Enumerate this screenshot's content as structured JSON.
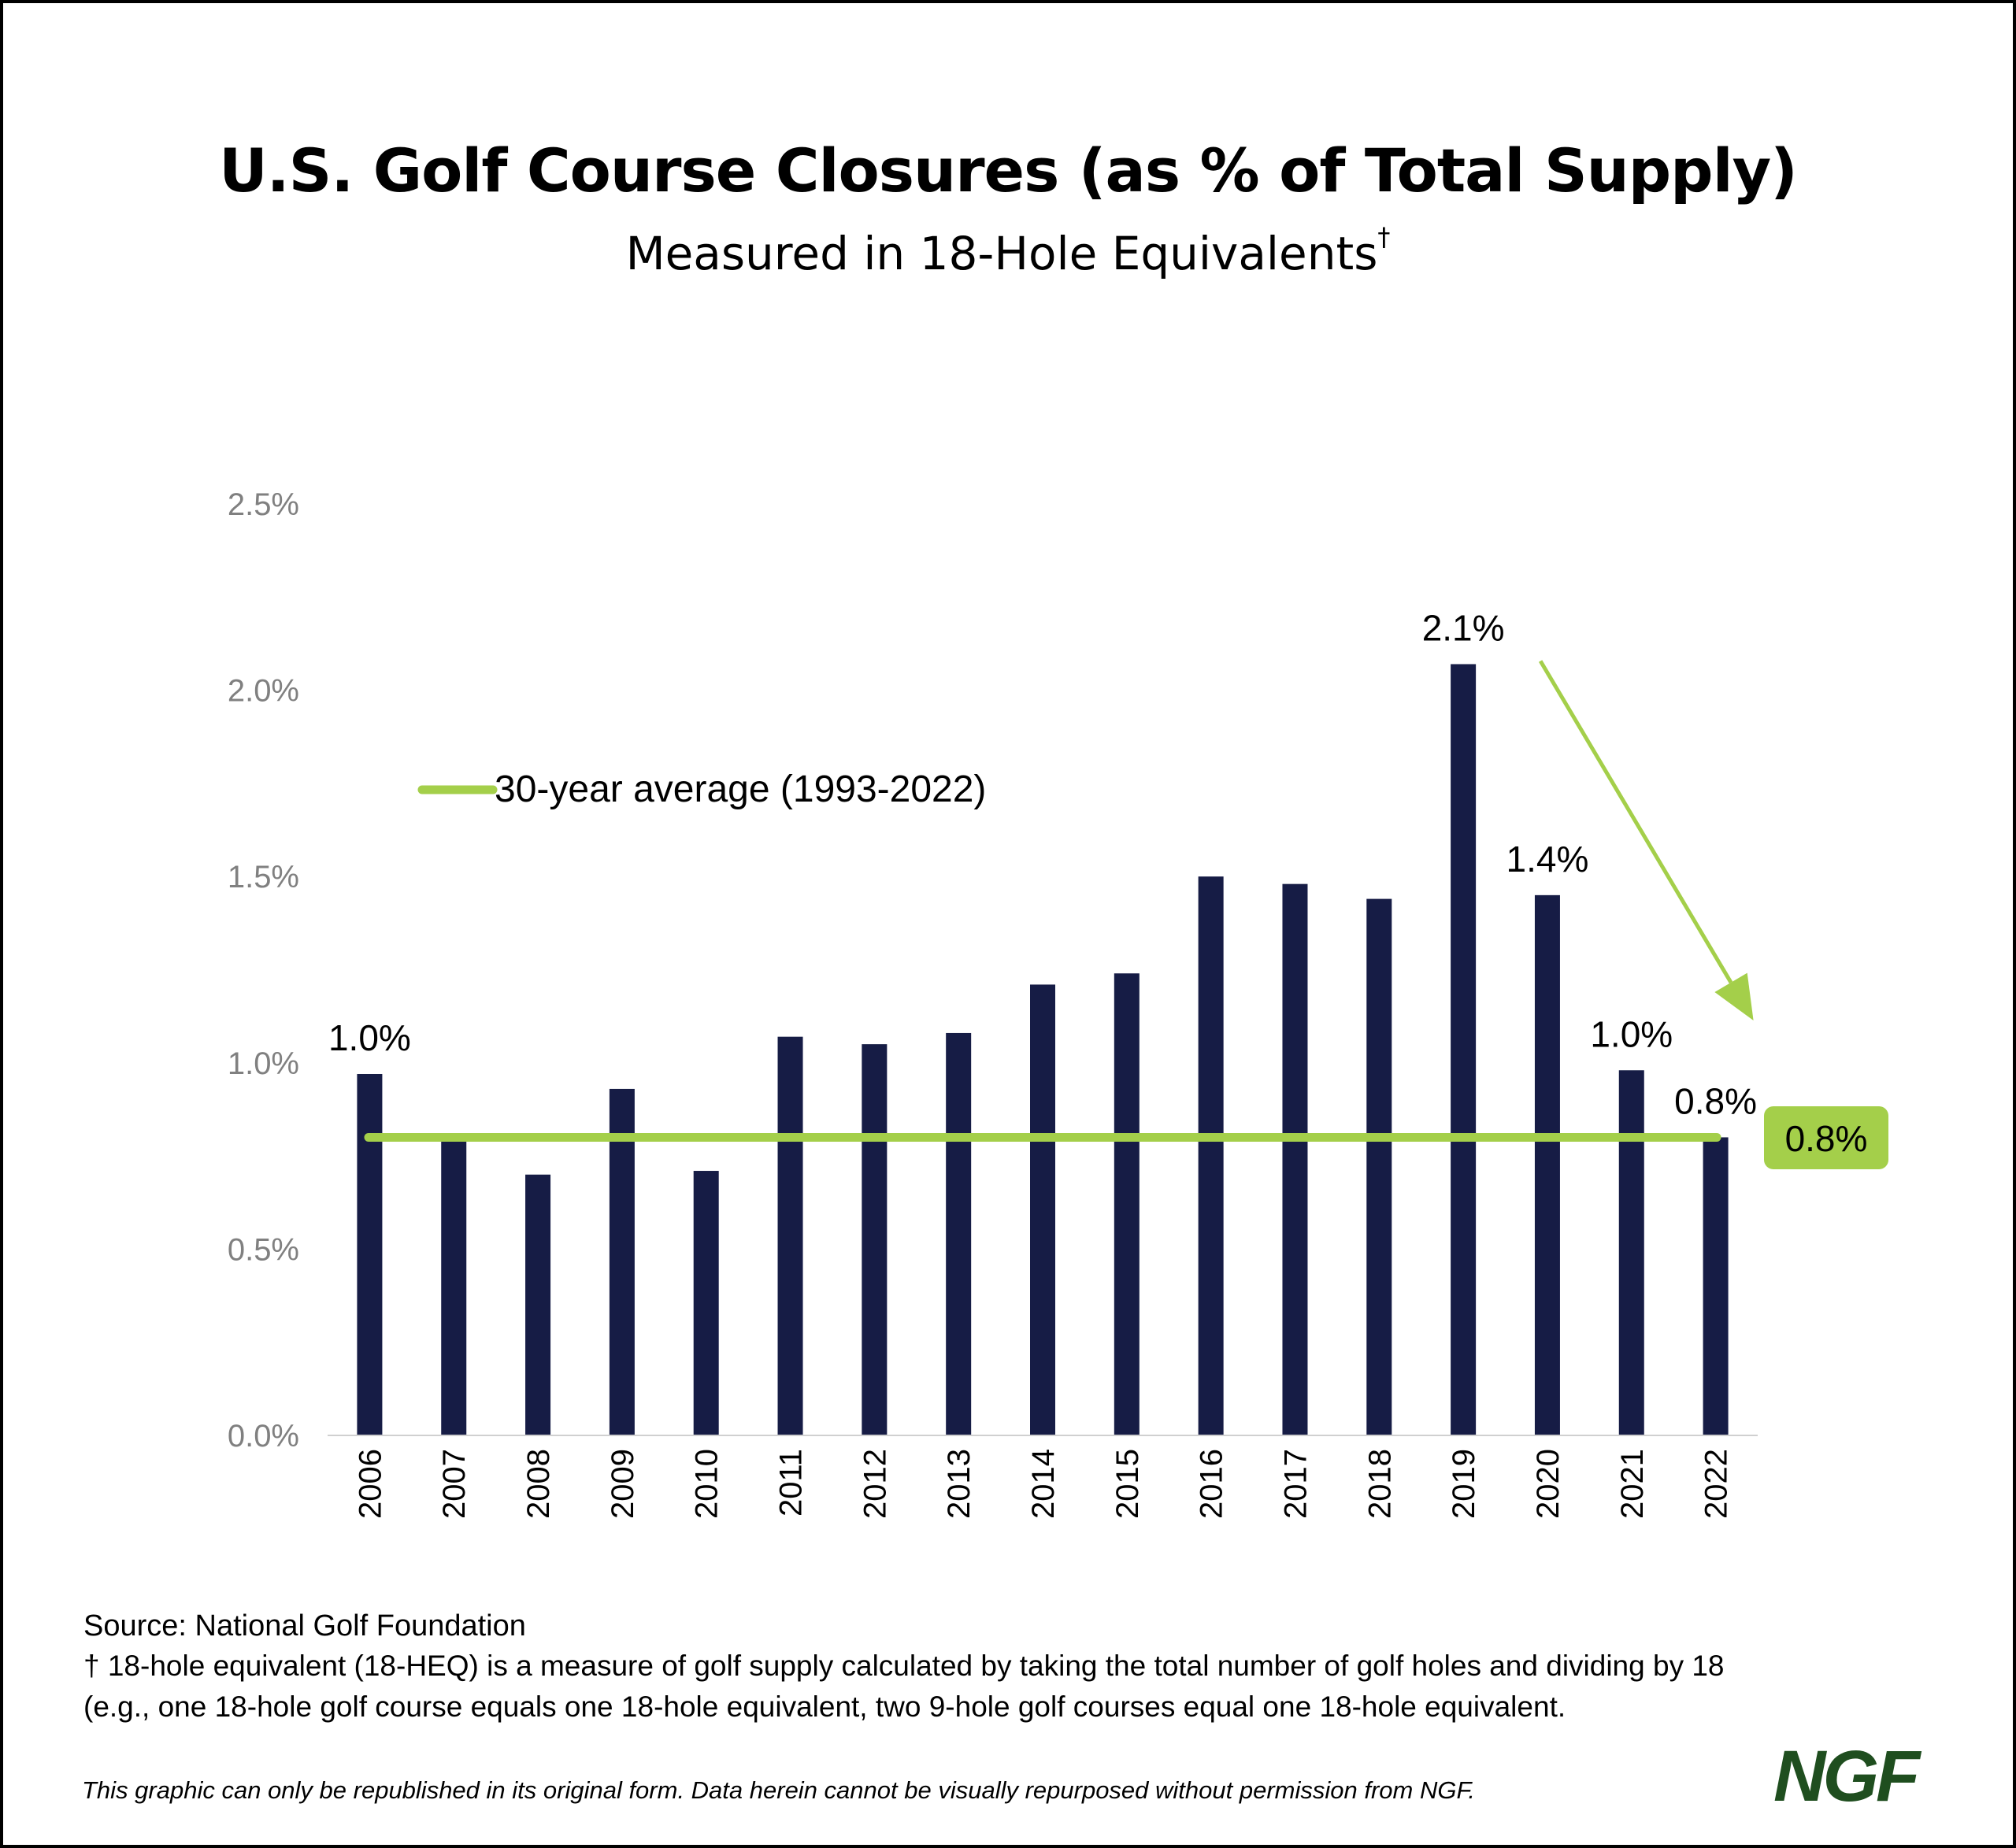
{
  "title": "U.S. Golf Course Closures (as % of Total Supply)",
  "subtitle": "Measured in 18-Hole Equivalents",
  "subtitle_mark": "†",
  "chart_data": {
    "type": "bar",
    "categories": [
      "2006",
      "2007",
      "2008",
      "2009",
      "2010",
      "2011",
      "2012",
      "2013",
      "2014",
      "2015",
      "2016",
      "2017",
      "2018",
      "2019",
      "2020",
      "2021",
      "2022"
    ],
    "values": [
      0.97,
      0.8,
      0.7,
      0.93,
      0.71,
      1.07,
      1.05,
      1.08,
      1.21,
      1.24,
      1.5,
      1.48,
      1.44,
      2.07,
      1.45,
      0.98,
      0.8
    ],
    "ylim": [
      0,
      2.5
    ],
    "yticks": [
      "0.0%",
      "0.5%",
      "1.0%",
      "1.5%",
      "2.0%",
      "2.5%"
    ],
    "ytick_values": [
      0,
      0.5,
      1.0,
      1.5,
      2.0,
      2.5
    ],
    "data_labels": [
      {
        "category": "2006",
        "text": "1.0%"
      },
      {
        "category": "2019",
        "text": "2.1%"
      },
      {
        "category": "2020",
        "text": "1.4%"
      },
      {
        "category": "2021",
        "text": "1.0%"
      },
      {
        "category": "2022",
        "text": "0.8%"
      }
    ],
    "average_line": {
      "value": 0.8,
      "label": "30-year average (1993-2022)",
      "badge": "0.8%"
    },
    "arrow": {
      "from_category": "2019",
      "to_category": "2022"
    },
    "grid": false,
    "colors": {
      "bar": "#161c45",
      "average": "#a4cf4a",
      "axis_text": "#808080"
    }
  },
  "source": "Source: National Golf Foundation",
  "footnote": "† 18-hole equivalent (18-HEQ) is a measure of golf supply calculated by taking the total number of golf holes and dividing by 18 (e.g., one 18-hole golf course equals one 18-hole equivalent, two 9-hole golf courses equal one 18-hole equivalent.",
  "disclaimer": "This graphic can only be republished in its original form. Data herein cannot be visually repurposed without permission from NGF.",
  "logo": "NGF"
}
